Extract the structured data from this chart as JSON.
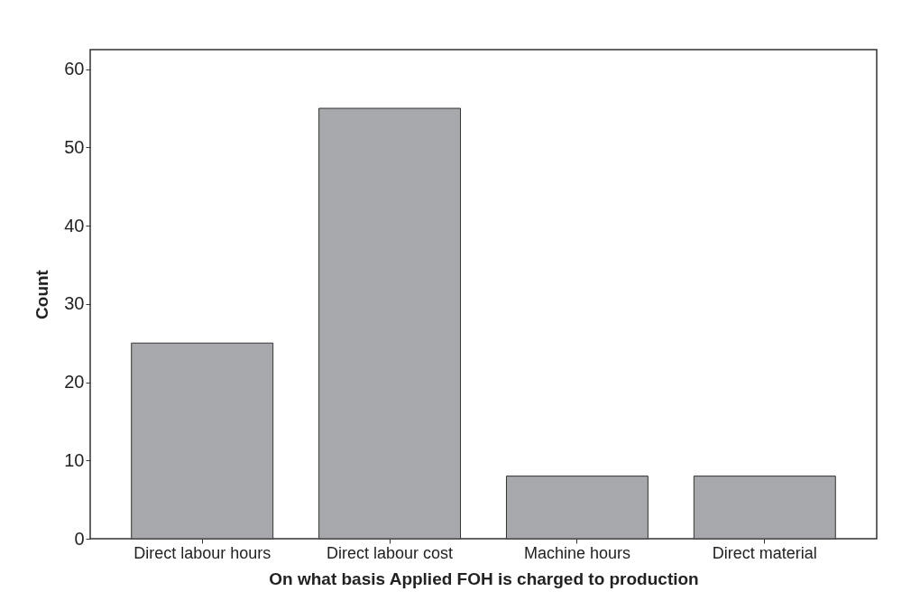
{
  "chart_data": {
    "type": "bar",
    "xlabel": "On what basis Applied FOH is charged to production",
    "ylabel": "Count",
    "categories": [
      "Direct labour hours",
      "Direct labour cost",
      "Machine hours",
      "Direct material"
    ],
    "values": [
      25,
      55,
      8,
      8
    ],
    "color": "#a7a8ab",
    "ylim": [
      0,
      62.5
    ],
    "yticks": [
      0,
      10,
      20,
      30,
      40,
      50,
      60
    ],
    "grid": false,
    "legend": false
  }
}
